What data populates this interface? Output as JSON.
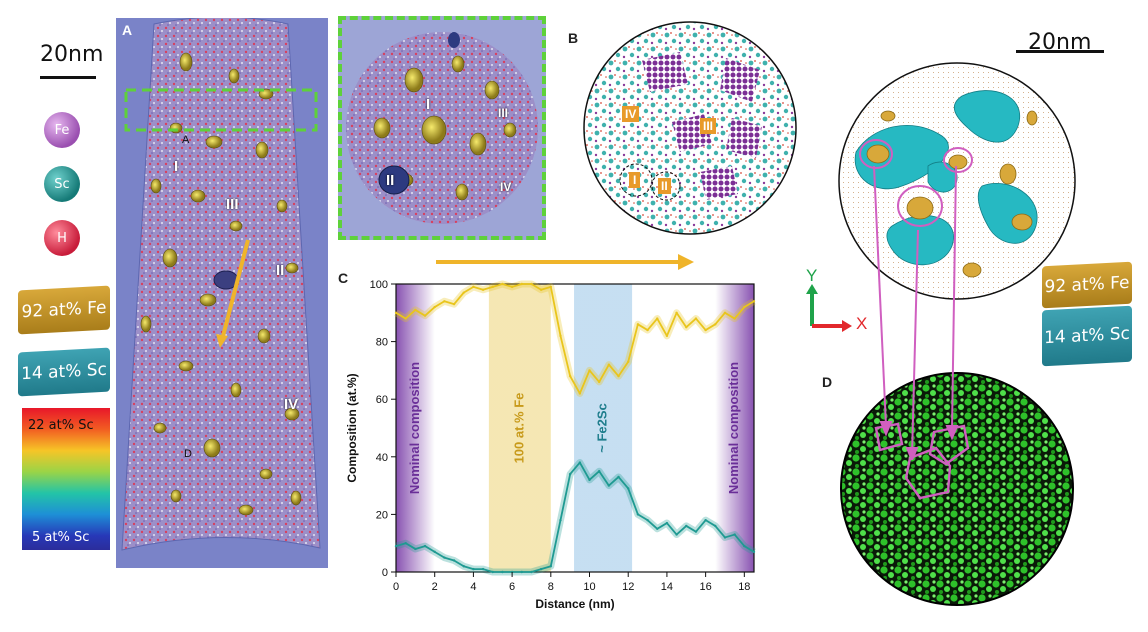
{
  "left_legend": {
    "scale_bar_label": "20nm",
    "atoms": [
      {
        "symbol": "Fe",
        "color": "#b063c3"
      },
      {
        "symbol": "Sc",
        "color": "#1f8f8c"
      },
      {
        "symbol": "H",
        "color": "#dd2b4a"
      }
    ],
    "iso_fe": "92 at% Fe",
    "iso_sc": "14 at% Sc",
    "colorbar_max": "22 at% Sc",
    "colorbar_min": "5 at% Sc"
  },
  "panel_a": {
    "label": "A",
    "regions": [
      "I",
      "III",
      "II",
      "IV"
    ],
    "markers": [
      "A",
      "D"
    ]
  },
  "inset": {
    "regions": [
      "I",
      "III",
      "II",
      "IV"
    ]
  },
  "panel_b": {
    "label": "B",
    "regions": [
      "IV",
      "III",
      "I",
      "II"
    ]
  },
  "panel_c": {
    "label": "C"
  },
  "panel_d": {
    "label": "D",
    "scale_bar_label": "20nm",
    "axis_y": "Y",
    "axis_x": "X",
    "iso_fe": "92 at% Fe",
    "iso_sc": "14 at% Sc"
  },
  "chart_data": {
    "type": "line",
    "xlabel": "Distance (nm)",
    "ylabel": "Composition (at.%)",
    "xlim": [
      0,
      18.5
    ],
    "ylim": [
      0,
      100
    ],
    "xticks": [
      0,
      2,
      4,
      6,
      8,
      10,
      12,
      14,
      16,
      18
    ],
    "yticks": [
      0,
      20,
      40,
      60,
      80,
      100
    ],
    "bands": [
      {
        "label": "Nominal composition",
        "from": 0,
        "to": 2,
        "color": "#7b3fa8"
      },
      {
        "label": "100 at.% Fe",
        "from": 4.8,
        "to": 8,
        "color": "#f3e3a6"
      },
      {
        "label": "~ Fe2Sc",
        "from": 9.2,
        "to": 12.2,
        "color": "#bcd9ef"
      },
      {
        "label": "Nominal composition",
        "from": 16.5,
        "to": 18.5,
        "color": "#7b3fa8"
      }
    ],
    "series": [
      {
        "name": "",
        "color": "#e9c51c",
        "x": [
          0,
          0.5,
          1,
          1.5,
          2,
          2.5,
          3,
          3.5,
          4,
          4.5,
          5,
          5.5,
          6,
          6.5,
          7,
          7.5,
          8,
          8.5,
          9,
          9.5,
          10,
          10.5,
          11,
          11.5,
          12,
          12.5,
          13,
          13.5,
          14,
          14.5,
          15,
          15.5,
          16,
          16.5,
          17,
          17.5,
          18,
          18.5
        ],
        "y": [
          90,
          88,
          91,
          89,
          92,
          94,
          93,
          97,
          99,
          98,
          99,
          100,
          99,
          100,
          100,
          98,
          99,
          82,
          68,
          62,
          70,
          66,
          72,
          68,
          73,
          86,
          84,
          88,
          82,
          90,
          85,
          88,
          84,
          86,
          90,
          88,
          92,
          94
        ]
      },
      {
        "name": "",
        "color": "#1f9a92",
        "x": [
          0,
          0.5,
          1,
          1.5,
          2,
          2.5,
          3,
          3.5,
          4,
          4.5,
          5,
          5.5,
          6,
          6.5,
          7,
          7.5,
          8,
          8.5,
          9,
          9.5,
          10,
          10.5,
          11,
          11.5,
          12,
          12.5,
          13,
          13.5,
          14,
          14.5,
          15,
          15.5,
          16,
          16.5,
          17,
          17.5,
          18,
          18.5
        ],
        "y": [
          9,
          10,
          8,
          9,
          7,
          5,
          4,
          2,
          1,
          1,
          0,
          0,
          0,
          0,
          0,
          1,
          2,
          18,
          34,
          38,
          32,
          35,
          30,
          33,
          29,
          20,
          18,
          15,
          17,
          13,
          16,
          14,
          18,
          16,
          12,
          13,
          9,
          7
        ]
      }
    ]
  }
}
